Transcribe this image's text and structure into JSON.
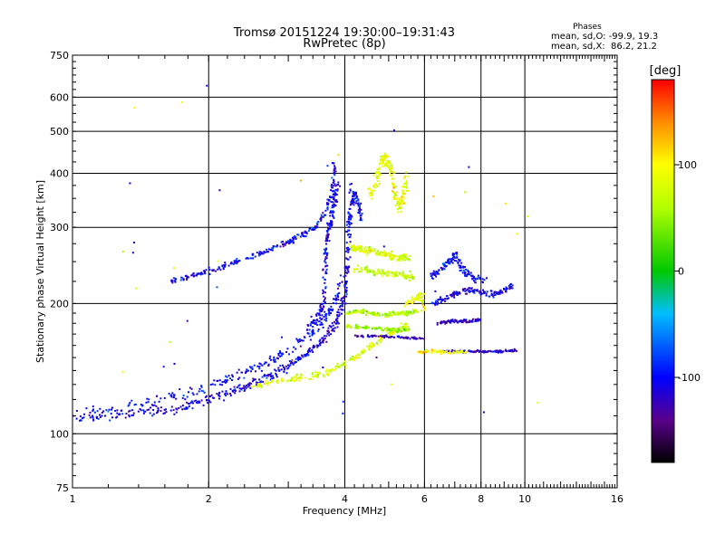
{
  "chart_data": {
    "type": "scatter",
    "title": "Tromsø 20151224 19:30:00–19:31:43",
    "subtitle": "RwPretec (8p)",
    "xlabel": "Frequency [MHz]",
    "ylabel": "Stationary phase Virtual Height [km]",
    "x_scale": "log",
    "y_scale": "log",
    "xlim": [
      1,
      16
    ],
    "ylim": [
      75,
      750
    ],
    "x_ticks": [
      1,
      2,
      4,
      6,
      8,
      10,
      16
    ],
    "x_tick_labels": [
      "1",
      "2",
      "4",
      "6",
      "8",
      "10",
      "16"
    ],
    "y_ticks": [
      75,
      100,
      200,
      300,
      400,
      500,
      600,
      750
    ],
    "y_tick_labels": [
      "75",
      "100",
      "200",
      "300",
      "400",
      "500",
      "600",
      "750"
    ],
    "grid": true,
    "stats": {
      "title": "Phases",
      "line_o": "mean, sd,O: -99.9, 19.3",
      "line_x": "mean, sd,X:  86.2, 21.2"
    },
    "colorbar": {
      "label": "[deg]",
      "range": [
        -180,
        180
      ],
      "ticks": [
        100,
        0,
        -100
      ],
      "tick_labels": [
        "100",
        "0",
        "-100"
      ]
    },
    "traces": [
      {
        "phase": -110,
        "width": 0.018,
        "spread": 0.01,
        "points": [
          [
            1.0,
            108
          ],
          [
            1.2,
            110
          ],
          [
            1.4,
            112
          ],
          [
            1.6,
            113
          ],
          [
            1.8,
            116
          ],
          [
            2.0,
            120
          ],
          [
            2.2,
            124
          ],
          [
            2.4,
            128
          ],
          [
            2.6,
            133
          ],
          [
            2.8,
            138
          ],
          [
            3.0,
            144
          ],
          [
            3.2,
            150
          ],
          [
            3.4,
            157
          ],
          [
            3.6,
            166
          ],
          [
            3.8,
            178
          ],
          [
            3.9,
            192
          ],
          [
            4.0,
            210
          ],
          [
            4.05,
            240
          ],
          [
            4.1,
            290
          ],
          [
            4.15,
            380
          ]
        ]
      },
      {
        "phase": -100,
        "width": 0.02,
        "spread": 0.012,
        "points": [
          [
            1.0,
            112
          ],
          [
            1.3,
            115
          ],
          [
            1.6,
            120
          ],
          [
            1.9,
            126
          ],
          [
            2.2,
            133
          ],
          [
            2.5,
            141
          ],
          [
            2.8,
            150
          ],
          [
            3.1,
            160
          ],
          [
            3.4,
            172
          ],
          [
            3.6,
            185
          ],
          [
            3.8,
            200
          ],
          [
            3.95,
            230
          ]
        ]
      },
      {
        "phase": -105,
        "width": 0.012,
        "spread": 0.008,
        "points": [
          [
            1.65,
            225
          ],
          [
            1.8,
            230
          ],
          [
            2.0,
            238
          ],
          [
            2.2,
            245
          ],
          [
            2.45,
            255
          ],
          [
            2.7,
            265
          ],
          [
            2.95,
            275
          ],
          [
            3.2,
            288
          ],
          [
            3.45,
            300
          ],
          [
            3.65,
            330
          ],
          [
            3.75,
            370
          ],
          [
            3.8,
            420
          ]
        ]
      },
      {
        "phase": -108,
        "width": 0.015,
        "spread": 0.01,
        "points": [
          [
            3.3,
            175
          ],
          [
            3.5,
            188
          ],
          [
            3.6,
            200
          ],
          [
            3.62,
            240
          ],
          [
            3.65,
            280
          ],
          [
            3.7,
            300
          ],
          [
            3.75,
            320
          ],
          [
            3.8,
            350
          ],
          [
            3.85,
            380
          ]
        ]
      },
      {
        "phase": -100,
        "width": 0.012,
        "spread": 0.008,
        "points": [
          [
            4.05,
            290
          ],
          [
            4.12,
            330
          ],
          [
            4.2,
            360
          ],
          [
            4.3,
            340
          ],
          [
            4.35,
            310
          ]
        ]
      },
      {
        "phase": 80,
        "width": 0.012,
        "spread": 0.008,
        "points": [
          [
            2.5,
            128
          ],
          [
            2.8,
            132
          ],
          [
            3.1,
            134
          ],
          [
            3.4,
            136
          ],
          [
            3.7,
            139
          ],
          [
            4.0,
            145
          ],
          [
            4.3,
            152
          ],
          [
            4.6,
            160
          ],
          [
            4.9,
            168
          ],
          [
            5.2,
            174
          ],
          [
            5.5,
            178
          ]
        ]
      },
      {
        "phase": 90,
        "width": 0.018,
        "spread": 0.012,
        "points": [
          [
            4.5,
            350
          ],
          [
            4.7,
            380
          ],
          [
            4.8,
            420
          ],
          [
            4.9,
            440
          ],
          [
            5.0,
            420
          ],
          [
            5.1,
            380
          ],
          [
            5.2,
            350
          ],
          [
            5.3,
            330
          ],
          [
            5.4,
            360
          ],
          [
            5.5,
            400
          ]
        ]
      },
      {
        "phase": 80,
        "width": 0.015,
        "spread": 0.012,
        "points": [
          [
            4.1,
            270
          ],
          [
            4.3,
            268
          ],
          [
            4.5,
            265
          ],
          [
            4.7,
            262
          ],
          [
            4.9,
            260
          ],
          [
            5.1,
            258
          ],
          [
            5.3,
            256
          ],
          [
            5.6,
            255
          ]
        ]
      },
      {
        "phase": 70,
        "width": 0.015,
        "spread": 0.01,
        "points": [
          [
            4.2,
            240
          ],
          [
            4.5,
            238
          ],
          [
            4.8,
            236
          ],
          [
            5.1,
            234
          ],
          [
            5.4,
            232
          ],
          [
            5.7,
            230
          ]
        ]
      },
      {
        "phase": 60,
        "width": 0.008,
        "spread": 0.012,
        "points": [
          [
            4.0,
            190
          ],
          [
            4.3,
            192
          ],
          [
            4.6,
            190
          ],
          [
            4.9,
            188
          ],
          [
            5.2,
            190
          ],
          [
            5.5,
            190
          ],
          [
            5.8,
            192
          ]
        ]
      },
      {
        "phase": 50,
        "width": 0.008,
        "spread": 0.012,
        "points": [
          [
            4.0,
            178
          ],
          [
            4.4,
            176
          ],
          [
            4.8,
            175
          ],
          [
            5.2,
            174
          ],
          [
            5.6,
            173
          ]
        ]
      },
      {
        "phase": -120,
        "width": 0.005,
        "spread": 0.015,
        "points": [
          [
            4.2,
            168
          ],
          [
            4.8,
            168
          ],
          [
            5.4,
            167
          ],
          [
            5.9,
            166
          ]
        ]
      },
      {
        "phase": -115,
        "width": 0.005,
        "spread": 0.012,
        "points": [
          [
            6.6,
            155
          ],
          [
            7.2,
            155
          ],
          [
            7.8,
            155
          ],
          [
            8.4,
            155
          ],
          [
            9.0,
            155
          ],
          [
            9.5,
            156
          ]
        ]
      },
      {
        "phase": -120,
        "width": 0.006,
        "spread": 0.012,
        "points": [
          [
            6.4,
            180
          ],
          [
            6.8,
            182
          ],
          [
            7.2,
            182
          ],
          [
            7.6,
            182
          ],
          [
            8.0,
            184
          ]
        ]
      },
      {
        "phase": -110,
        "width": 0.01,
        "spread": 0.01,
        "points": [
          [
            6.3,
            200
          ],
          [
            6.6,
            205
          ],
          [
            7.0,
            210
          ],
          [
            7.5,
            215
          ],
          [
            8.0,
            212
          ],
          [
            8.5,
            210
          ],
          [
            9.0,
            215
          ],
          [
            9.4,
            220
          ]
        ]
      },
      {
        "phase": -100,
        "width": 0.015,
        "spread": 0.01,
        "points": [
          [
            6.2,
            230
          ],
          [
            6.5,
            240
          ],
          [
            6.8,
            250
          ],
          [
            7.0,
            260
          ],
          [
            7.3,
            240
          ],
          [
            7.6,
            230
          ],
          [
            8.2,
            225
          ]
        ]
      },
      {
        "phase": 100,
        "width": 0.008,
        "spread": 0.01,
        "points": [
          [
            5.8,
            155
          ],
          [
            6.3,
            155
          ],
          [
            6.9,
            154
          ],
          [
            7.4,
            155
          ]
        ]
      },
      {
        "phase": 90,
        "width": 0.012,
        "spread": 0.012,
        "points": [
          [
            5.4,
            200
          ],
          [
            5.7,
            205
          ],
          [
            5.9,
            210
          ],
          [
            6.0,
            190
          ]
        ]
      }
    ]
  }
}
